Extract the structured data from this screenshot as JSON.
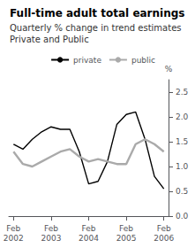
{
  "chart_data": {
    "type": "line",
    "title": "Full-time adult total earnings",
    "subtitle": [
      "Quarterly % change in trend estimates",
      "Private and Public"
    ],
    "ylabel": "%",
    "categories": [
      "Feb\n2002",
      null,
      null,
      null,
      "Feb\n2003",
      null,
      null,
      null,
      "Feb\n2004",
      null,
      null,
      null,
      "Feb\n2005",
      null,
      null,
      null,
      "Feb\n2006"
    ],
    "series": [
      {
        "name": "private",
        "color": "#000000",
        "values": [
          1.45,
          1.35,
          1.55,
          1.7,
          1.8,
          1.75,
          1.75,
          1.3,
          0.65,
          0.7,
          1.1,
          1.85,
          2.05,
          2.1,
          1.55,
          0.8,
          0.55
        ]
      },
      {
        "name": "public",
        "color": "#aaaaaa",
        "values": [
          1.3,
          1.05,
          1.0,
          1.1,
          1.2,
          1.3,
          1.35,
          1.2,
          1.1,
          1.15,
          1.1,
          1.05,
          1.05,
          1.45,
          1.55,
          1.45,
          1.3
        ]
      }
    ],
    "ylim": [
      0,
      2.75
    ],
    "yticks": [
      {
        "value": 0,
        "label": "0.0"
      },
      0.5,
      {
        "value": 1,
        "label": "1.0"
      },
      1.5,
      {
        "value": 2,
        "label": "2.0"
      },
      2.5
    ],
    "grid": false,
    "legend": "upper right"
  }
}
